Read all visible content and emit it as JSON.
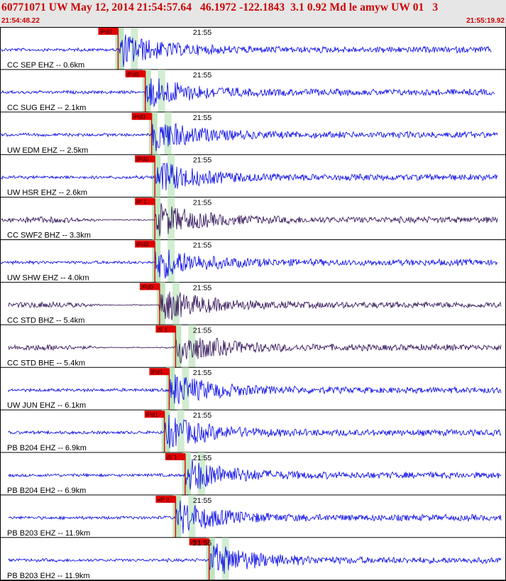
{
  "header": {
    "title": "60771071 UW May 12, 2014 21:54:57.64   46.1972 -122.1843  3.1 0.92 Md le amyw UW 01   3",
    "start_time": "21:54:48.22",
    "end_time": "21:55:19.92"
  },
  "colors": {
    "header_bg": "#e6e6e6",
    "header_text": "#cc0000",
    "trace_blue": "#0000e6",
    "trace_dark": "#2a0a52",
    "pick_red": "#e00000",
    "window_green": "#bfe6bf",
    "divider": "#000000"
  },
  "chart_data": {
    "type": "seismogram",
    "time_range": [
      "21:54:48.22",
      "21:55:19.92"
    ],
    "minute_tick_label": "21:55",
    "traces": [
      {
        "label": "CC SEP EHZ -- 0.6km",
        "pick": "iPd0",
        "color": "blue",
        "p_time": 7.4,
        "end_time": 30.8
      },
      {
        "label": "CC SUG EHZ -- 2.1km",
        "pick": "iPd0",
        "color": "blue",
        "p_time": 9.1,
        "end_time": 31.0
      },
      {
        "label": "UW EDM EHZ -- 2.5km",
        "pick": "iPd0",
        "color": "blue",
        "p_time": 9.5,
        "end_time": 31.2
      },
      {
        "label": "UW HSR EHZ -- 2.6km",
        "pick": "iPd0",
        "color": "blue",
        "p_time": 9.7,
        "end_time": 31.2
      },
      {
        "label": "CC SWF2 BHZ -- 3.3km",
        "pick": "iP 1",
        "color": "dark",
        "p_time": 9.7,
        "end_time": 31.2
      },
      {
        "label": "UW SHW EHZ -- 4.0km",
        "pick": "iPd0",
        "color": "blue",
        "p_time": 9.7,
        "end_time": 31.2
      },
      {
        "label": "CC STD BHZ -- 5.4km",
        "pick": "iPd0",
        "color": "dark",
        "p_time": 10.0,
        "end_time": 31.4
      },
      {
        "label": "CC STD BHE -- 5.4km",
        "pick": "iS 1",
        "color": "dark",
        "p_time": 11.0,
        "end_time": 31.4
      },
      {
        "label": "UW JUN EHZ -- 6.1km",
        "pick": "iPd1",
        "color": "blue",
        "p_time": 10.6,
        "end_time": 31.4
      },
      {
        "label": "PB B204 EHZ -- 6.9km",
        "pick": "iPd1",
        "color": "blue",
        "p_time": 10.3,
        "end_time": 31.4
      },
      {
        "label": "PB B204 EH2 -- 6.9km",
        "pick": "iS 1",
        "color": "blue",
        "p_time": 11.6,
        "end_time": 31.4
      },
      {
        "label": "PB B203 EHZ -- 11.9km",
        "pick": "eP 2",
        "color": "blue",
        "p_time": 11.0,
        "end_time": 31.4
      },
      {
        "label": "PB B203 EH2 -- 11.9km",
        "pick": "iS 1",
        "color": "blue",
        "p_time": 13.1,
        "end_time": 31.4
      }
    ]
  }
}
